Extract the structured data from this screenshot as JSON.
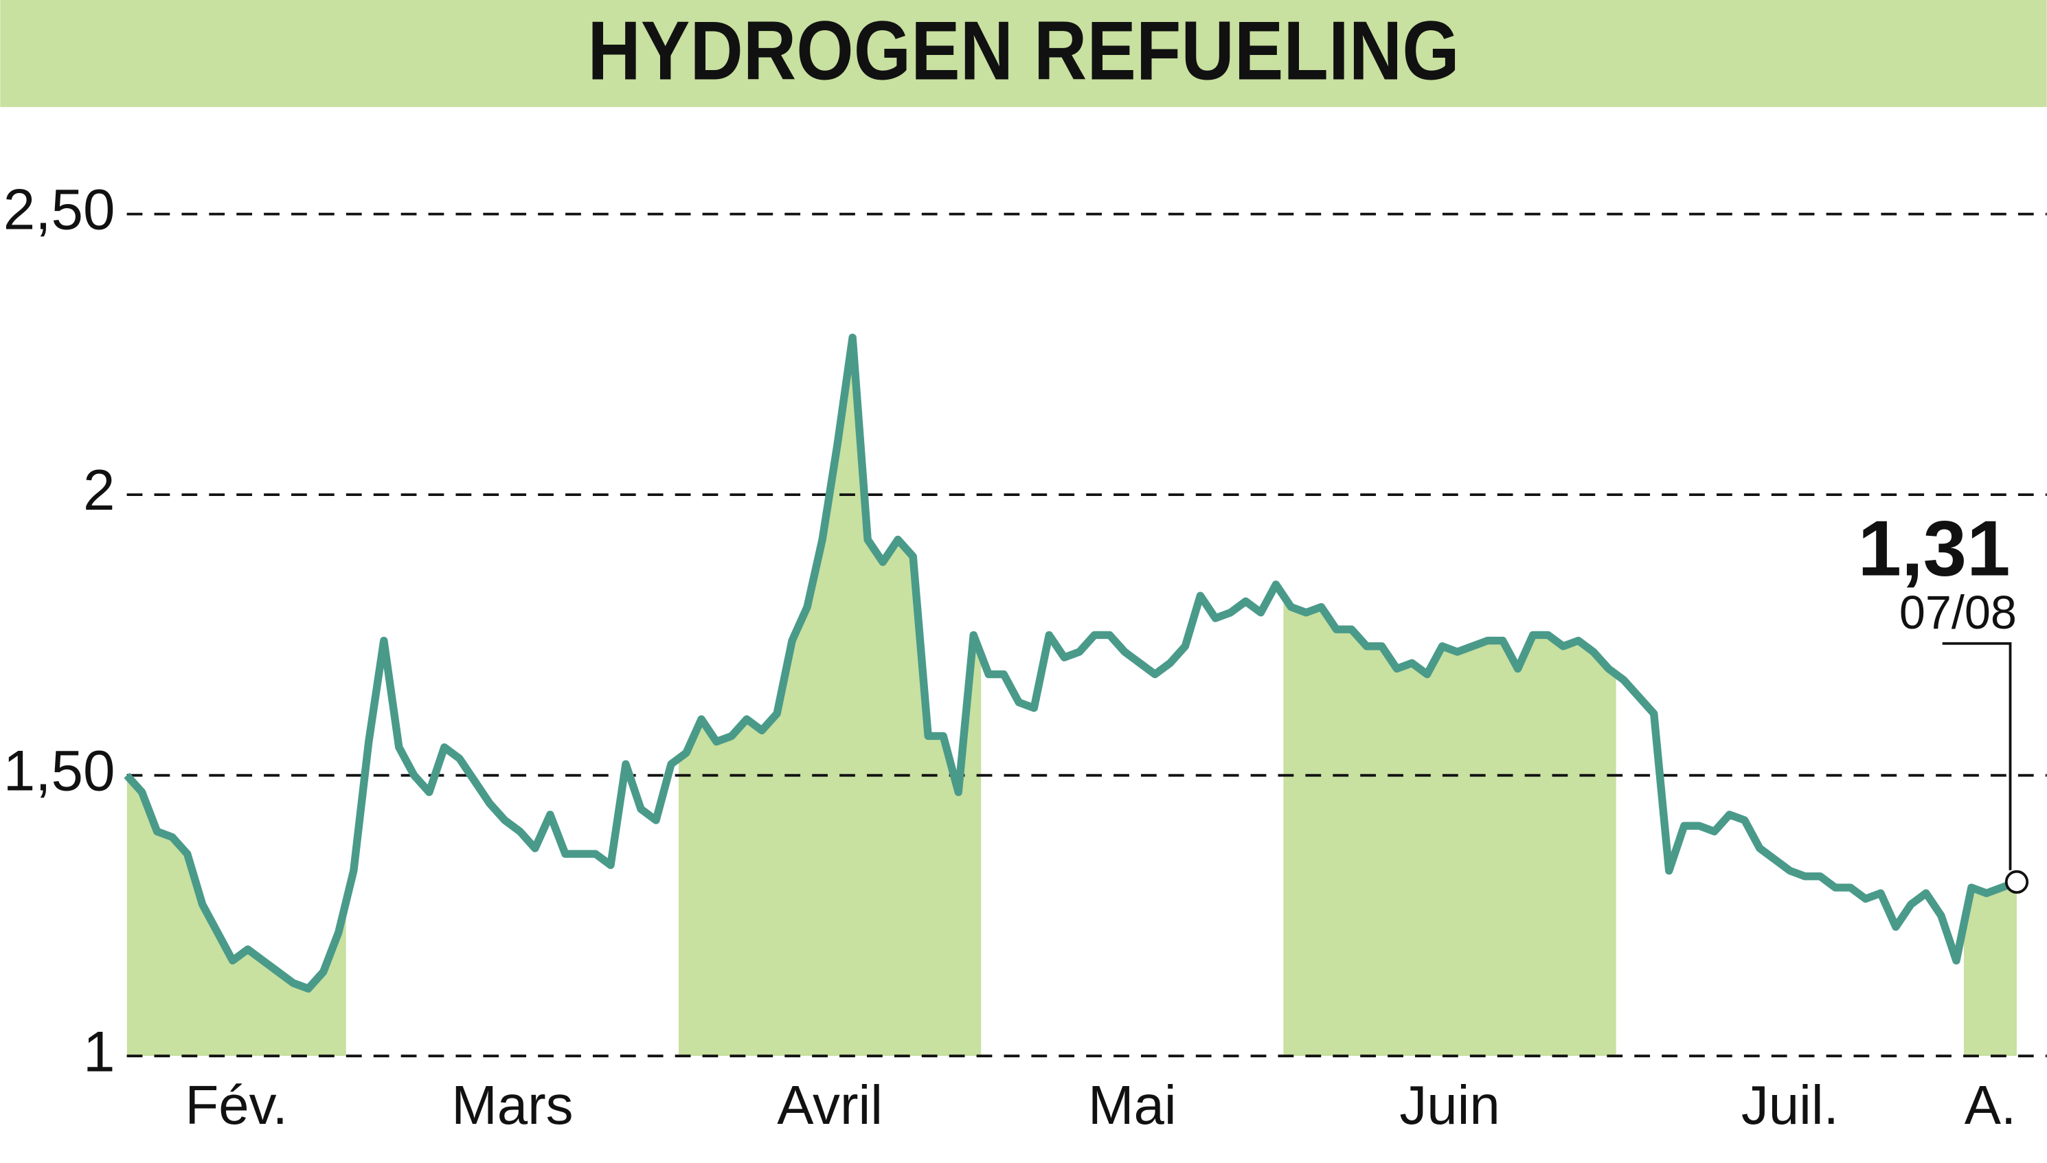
{
  "chart_data": {
    "type": "line",
    "title": "HYDROGEN REFUELING",
    "categories": [
      "Fév.",
      null,
      null,
      null,
      null,
      null,
      null,
      null,
      null,
      null,
      null,
      null,
      null,
      null,
      null,
      "Mars",
      null,
      null,
      null,
      null,
      null,
      null,
      null,
      null,
      null,
      null,
      null,
      null,
      null,
      null,
      null,
      null,
      null,
      null,
      null,
      null,
      null,
      "Avril",
      null,
      null,
      null,
      null,
      null,
      null,
      null,
      null,
      null,
      null,
      null,
      null,
      null,
      null,
      null,
      null,
      null,
      null,
      null,
      "Mai",
      null,
      null,
      null,
      null,
      null,
      null,
      null,
      null,
      null,
      null,
      null,
      null,
      null,
      null,
      null,
      null,
      null,
      null,
      null,
      "Juin",
      null,
      null,
      null,
      null,
      null,
      null,
      null,
      null,
      null,
      null,
      null,
      null,
      null,
      null,
      null,
      null,
      null,
      null,
      null,
      null,
      null,
      "Juil.",
      null,
      null,
      null,
      null,
      null,
      null,
      null,
      null,
      null,
      null,
      null,
      null,
      null,
      null,
      null,
      null,
      null,
      null,
      null,
      null,
      null,
      null,
      "A.",
      null,
      null,
      null
    ],
    "values": [
      1.5,
      1.47,
      1.4,
      1.39,
      1.36,
      1.27,
      1.22,
      1.17,
      1.19,
      1.17,
      1.15,
      1.13,
      1.12,
      1.15,
      1.22,
      1.33,
      1.56,
      1.74,
      1.55,
      1.5,
      1.47,
      1.55,
      1.53,
      1.49,
      1.45,
      1.42,
      1.4,
      1.37,
      1.43,
      1.36,
      1.36,
      1.36,
      1.34,
      1.52,
      1.44,
      1.42,
      1.52,
      1.54,
      1.6,
      1.56,
      1.57,
      1.6,
      1.58,
      1.61,
      1.74,
      1.8,
      1.92,
      2.09,
      2.28,
      1.92,
      1.88,
      1.92,
      1.89,
      1.57,
      1.57,
      1.47,
      1.75,
      1.68,
      1.68,
      1.63,
      1.62,
      1.75,
      1.71,
      1.72,
      1.75,
      1.75,
      1.72,
      1.7,
      1.68,
      1.7,
      1.73,
      1.82,
      1.78,
      1.79,
      1.81,
      1.79,
      1.84,
      1.8,
      1.79,
      1.8,
      1.76,
      1.76,
      1.73,
      1.73,
      1.69,
      1.7,
      1.68,
      1.73,
      1.72,
      1.73,
      1.74,
      1.74,
      1.69,
      1.75,
      1.75,
      1.73,
      1.74,
      1.72,
      1.69,
      1.67,
      1.64,
      1.61,
      1.33,
      1.41,
      1.41,
      1.4,
      1.43,
      1.42,
      1.37,
      1.35,
      1.33,
      1.32,
      1.32,
      1.3,
      1.3,
      1.28,
      1.29,
      1.23,
      1.27,
      1.29,
      1.25,
      1.17,
      1.3,
      1.29,
      1.3,
      1.31
    ],
    "value_labels": [
      null,
      null,
      null,
      null,
      null,
      null,
      null,
      null,
      null,
      null,
      null,
      null,
      null,
      null,
      null,
      null,
      null,
      null,
      null,
      null,
      null,
      null,
      null,
      null,
      null,
      null,
      null,
      null,
      null,
      null,
      null,
      null,
      null,
      null,
      null,
      null,
      null,
      null,
      null,
      null,
      null,
      null,
      null,
      null,
      null,
      null,
      null,
      null,
      null,
      null,
      null,
      null,
      null,
      null,
      null,
      null,
      null,
      null,
      null,
      null,
      null,
      null,
      null,
      null,
      null,
      null,
      null,
      null,
      null,
      null,
      null,
      null,
      null,
      null,
      null,
      null,
      null,
      null,
      null,
      null,
      null,
      null,
      null,
      null,
      null,
      null,
      null,
      null,
      null,
      null,
      null,
      null,
      null,
      null,
      null,
      null,
      null,
      null,
      null,
      null,
      null,
      null,
      null,
      null,
      null,
      null,
      null,
      null,
      null,
      null,
      null,
      null,
      null,
      null,
      null,
      null,
      null,
      null,
      null,
      null,
      null,
      null,
      null,
      null,
      null,
      "1,31"
    ],
    "last_date": "07/08",
    "color": "#4a9a8a",
    "fill_color": "#c8e0a0",
    "ylim": [
      1,
      2.65
    ],
    "yticks": [
      1,
      {
        "value": 1.5,
        "label": "1,50"
      },
      2,
      {
        "value": 2.5,
        "label": "2,50"
      }
    ],
    "grid": true
  }
}
